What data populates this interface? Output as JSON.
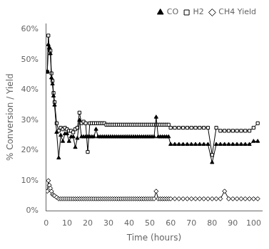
{
  "chart_data": {
    "type": "line",
    "xlabel": "Time (hours)",
    "ylabel": "% Conversion / Yield",
    "x": [
      0.5,
      1,
      1.5,
      2,
      2.5,
      3,
      3.5,
      4,
      5,
      6,
      7,
      8,
      9,
      10,
      11,
      12,
      13,
      14,
      15,
      16,
      17,
      18,
      19,
      20,
      21,
      22,
      23,
      24,
      25,
      26,
      27,
      28,
      29,
      30,
      31,
      32,
      33,
      34,
      35,
      36,
      37,
      38,
      39,
      40,
      41,
      42,
      43,
      44,
      45,
      46,
      47,
      48,
      49,
      50,
      51,
      52,
      53,
      54,
      55,
      56,
      57,
      58,
      59,
      60,
      62,
      64,
      66,
      68,
      70,
      72,
      74,
      76,
      78,
      80,
      82,
      84,
      86,
      88,
      90,
      92,
      94,
      96,
      98,
      100,
      102
    ],
    "series": [
      {
        "name": "CO",
        "color": "#000000",
        "marker": "filled_triangle",
        "values": [
          0.46,
          0.55,
          0.54,
          0.52,
          0.44,
          0.42,
          0.38,
          0.35,
          0.26,
          0.175,
          0.25,
          0.23,
          0.255,
          0.255,
          0.23,
          0.245,
          0.245,
          0.21,
          0.24,
          0.3,
          0.245,
          0.245,
          0.245,
          0.245,
          0.245,
          0.245,
          0.245,
          0.27,
          0.245,
          0.245,
          0.245,
          0.245,
          0.245,
          0.245,
          0.245,
          0.245,
          0.245,
          0.245,
          0.245,
          0.245,
          0.245,
          0.245,
          0.245,
          0.245,
          0.245,
          0.245,
          0.245,
          0.245,
          0.245,
          0.245,
          0.245,
          0.245,
          0.245,
          0.245,
          0.245,
          0.245,
          0.31,
          0.245,
          0.245,
          0.245,
          0.245,
          0.245,
          0.245,
          0.22,
          0.22,
          0.22,
          0.22,
          0.22,
          0.22,
          0.22,
          0.22,
          0.22,
          0.22,
          0.16,
          0.22,
          0.22,
          0.22,
          0.22,
          0.22,
          0.22,
          0.22,
          0.22,
          0.22,
          0.23,
          0.23
        ]
      },
      {
        "name": "H2",
        "color": "#000000",
        "marker": "open_square",
        "values": [
          0.46,
          0.58,
          0.535,
          0.53,
          0.455,
          0.43,
          0.39,
          0.36,
          0.29,
          0.265,
          0.275,
          0.27,
          0.275,
          0.27,
          0.265,
          0.265,
          0.26,
          0.27,
          0.275,
          0.325,
          0.29,
          0.295,
          0.29,
          0.195,
          0.29,
          0.29,
          0.29,
          0.29,
          0.29,
          0.29,
          0.29,
          0.29,
          0.285,
          0.285,
          0.285,
          0.285,
          0.285,
          0.285,
          0.285,
          0.285,
          0.285,
          0.285,
          0.285,
          0.285,
          0.285,
          0.285,
          0.285,
          0.285,
          0.285,
          0.285,
          0.285,
          0.285,
          0.285,
          0.285,
          0.285,
          0.285,
          0.285,
          0.285,
          0.285,
          0.285,
          0.285,
          0.285,
          0.285,
          0.275,
          0.275,
          0.275,
          0.275,
          0.275,
          0.275,
          0.275,
          0.275,
          0.275,
          0.275,
          0.185,
          0.275,
          0.265,
          0.265,
          0.265,
          0.265,
          0.265,
          0.265,
          0.265,
          0.265,
          0.275,
          0.29
        ]
      },
      {
        "name": "CH4 Yield",
        "color": "#000000",
        "marker": "open_diamond",
        "values": [
          0.065,
          0.1,
          0.085,
          0.075,
          0.065,
          0.055,
          0.052,
          0.05,
          0.045,
          0.04,
          0.04,
          0.04,
          0.04,
          0.04,
          0.04,
          0.04,
          0.04,
          0.04,
          0.04,
          0.04,
          0.04,
          0.04,
          0.04,
          0.04,
          0.04,
          0.04,
          0.04,
          0.04,
          0.04,
          0.04,
          0.04,
          0.04,
          0.04,
          0.04,
          0.04,
          0.04,
          0.04,
          0.04,
          0.04,
          0.04,
          0.04,
          0.04,
          0.04,
          0.04,
          0.04,
          0.04,
          0.04,
          0.04,
          0.04,
          0.04,
          0.04,
          0.04,
          0.04,
          0.04,
          0.04,
          0.04,
          0.065,
          0.04,
          0.04,
          0.04,
          0.04,
          0.04,
          0.04,
          0.04,
          0.04,
          0.04,
          0.04,
          0.04,
          0.04,
          0.04,
          0.04,
          0.04,
          0.04,
          0.04,
          0.04,
          0.04,
          0.065,
          0.04,
          0.04,
          0.04,
          0.04,
          0.04,
          0.04,
          0.04,
          0.04
        ]
      }
    ],
    "xlim": [
      0,
      104
    ],
    "xticks": [
      0,
      10,
      20,
      30,
      40,
      50,
      60,
      70,
      80,
      90,
      100
    ],
    "ylim": [
      0,
      0.62
    ],
    "yticks": [
      {
        "value": 0.0,
        "label": "0%"
      },
      {
        "value": 0.1,
        "label": "10%"
      },
      {
        "value": 0.2,
        "label": "20%"
      },
      {
        "value": 0.3,
        "label": "30%"
      },
      {
        "value": 0.4,
        "label": "40%"
      },
      {
        "value": 0.5,
        "label": "50%"
      },
      {
        "value": 0.6,
        "label": "60%"
      }
    ],
    "grid": false,
    "legend": "upper right"
  }
}
